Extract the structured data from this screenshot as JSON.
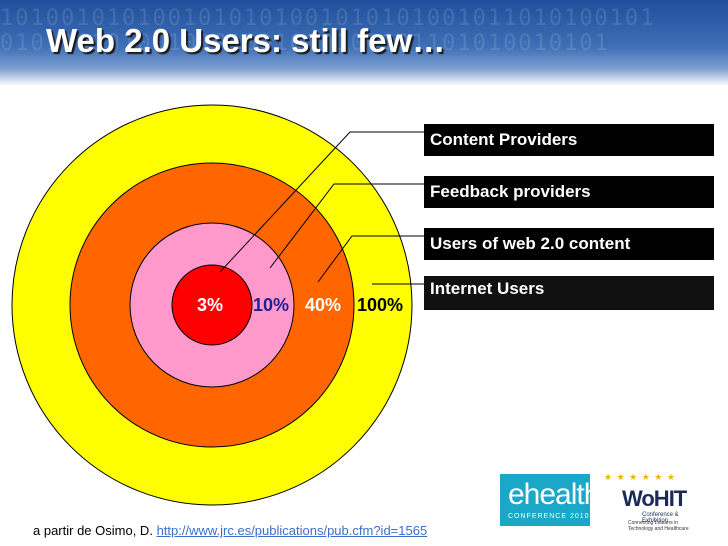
{
  "title": "Web 2.0 Users: still few…",
  "rings": [
    {
      "label": "Internet Users",
      "percent": "100%",
      "color": "#ffff00",
      "text_color": "#000000"
    },
    {
      "label": "Users of web 2.0 content",
      "percent": "40%",
      "color": "#ff6600",
      "text_color": "#ffffff"
    },
    {
      "label": "Feedback providers",
      "percent": "10%",
      "color": "#ff99cc",
      "text_color": "#1f1f8f"
    },
    {
      "label": "Content Providers",
      "percent": "3%",
      "color": "#ff0000",
      "text_color": "#ffffff"
    }
  ],
  "source": {
    "prefix": "a partir de Osimo, D.",
    "link": "http://www.jrc.es/publications/pub.cfm?id=1565"
  },
  "logos": {
    "ehealth": {
      "main": "ehealth",
      "sub": "CONFERENCE 2010"
    },
    "wohit": {
      "main": "WoHIT",
      "sub1": "Conference & Exhibition",
      "sub2": "Connecting Leaders in Technology and Healthcare"
    }
  },
  "colors": {
    "header": "#2f5ea8",
    "label_box": "#000000"
  }
}
